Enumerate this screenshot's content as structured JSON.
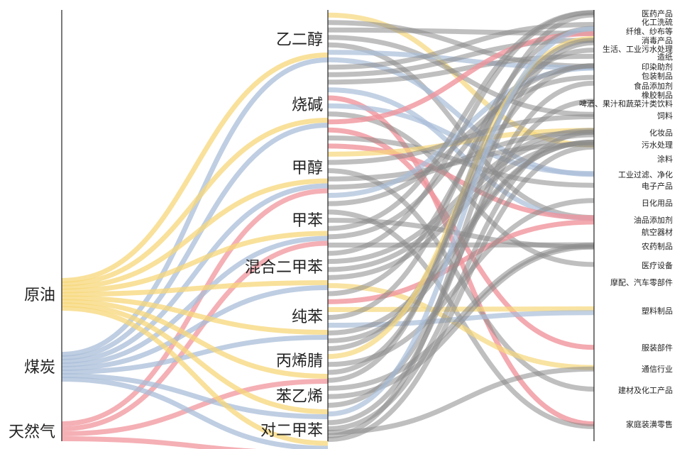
{
  "colors": {
    "crude": "#f7d77a",
    "coal": "#a9bdd8",
    "gas": "#f0959c",
    "downstream": "#8a8a8a"
  },
  "sources": [
    {
      "name": "原油",
      "color_key": "crude"
    },
    {
      "name": "煤炭",
      "color_key": "coal"
    },
    {
      "name": "天然气",
      "color_key": "gas"
    }
  ],
  "intermediates": [
    "乙二醇",
    "烧碱",
    "甲醇",
    "甲苯",
    "混合二甲苯",
    "纯苯",
    "丙烯腈",
    "苯乙烯",
    "对二甲苯"
  ],
  "targets": [
    "医药产品",
    "化工洗硫",
    "纤维、纱布等",
    "消毒产品",
    "生活、工业污水处理",
    "造纸",
    "印染助剂",
    "包装制品",
    "食品添加剂",
    "橡胶制品",
    "啤酒、果汁和蔬菜汁类饮料",
    "饲料",
    "化妆品",
    "污水处理",
    "涂料",
    "工业过滤、净化",
    "电子产品",
    "日化用品",
    "油品添加剂",
    "航空器材",
    "农药制品",
    "医疗设备",
    "摩配、汽车零部件",
    "塑料制品",
    "服装部件",
    "通信行业",
    "建材及化工产品",
    "家庭装潢零售"
  ],
  "links_source_to_mid": [
    {
      "source": "原油",
      "target": "乙二醇"
    },
    {
      "source": "煤炭",
      "target": "乙二醇"
    },
    {
      "source": "原油",
      "target": "烧碱"
    },
    {
      "source": "煤炭",
      "target": "烧碱"
    },
    {
      "source": "原油",
      "target": "甲醇"
    },
    {
      "source": "煤炭",
      "target": "甲醇"
    },
    {
      "source": "天然气",
      "target": "甲醇"
    },
    {
      "source": "原油",
      "target": "甲苯"
    },
    {
      "source": "煤炭",
      "target": "甲苯"
    },
    {
      "source": "天然气",
      "target": "甲苯"
    },
    {
      "source": "原油",
      "target": "混合二甲苯"
    },
    {
      "source": "煤炭",
      "target": "混合二甲苯"
    },
    {
      "source": "原油",
      "target": "纯苯"
    },
    {
      "source": "煤炭",
      "target": "纯苯"
    },
    {
      "source": "原油",
      "target": "丙烯腈"
    },
    {
      "source": "天然气",
      "target": "丙烯腈"
    },
    {
      "source": "原油",
      "target": "苯乙烯"
    },
    {
      "source": "煤炭",
      "target": "苯乙烯"
    },
    {
      "source": "原油",
      "target": "对二甲苯"
    },
    {
      "source": "煤炭",
      "target": "对二甲苯"
    },
    {
      "source": "天然气",
      "target": "对二甲苯"
    }
  ]
}
